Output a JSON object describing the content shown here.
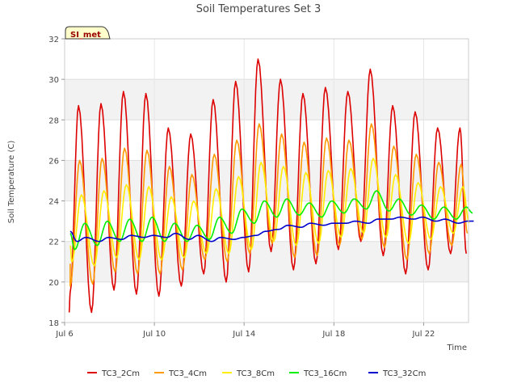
{
  "chart_data": {
    "type": "line",
    "title": "Soil Temperatures Set 3",
    "xlabel": "Time",
    "ylabel": "Soil Temperature (C)",
    "site_label": "SI_met",
    "xlim": [
      6.0,
      24.0
    ],
    "ylim": [
      18,
      32
    ],
    "x_ticks": [
      {
        "value": 6,
        "label": "Jul 6"
      },
      {
        "value": 10,
        "label": "Jul 10"
      },
      {
        "value": 14,
        "label": "Jul 14"
      },
      {
        "value": 18,
        "label": "Jul 18"
      },
      {
        "value": 22,
        "label": "Jul 22"
      }
    ],
    "y_ticks": [
      18,
      20,
      22,
      24,
      26,
      28,
      30,
      32
    ],
    "grid": true,
    "legend_position": "bottom",
    "series": [
      {
        "name": "TC3_2Cm",
        "color": "#dd0000",
        "min_phase": 0.2,
        "max_phase": 0.62,
        "daily": [
          [
            18.5,
            28.7
          ],
          [
            18.5,
            28.8
          ],
          [
            19.6,
            29.4
          ],
          [
            19.4,
            29.3
          ],
          [
            19.3,
            27.6
          ],
          [
            19.8,
            27.3
          ],
          [
            20.4,
            29.0
          ],
          [
            20.0,
            29.9
          ],
          [
            20.5,
            31.0
          ],
          [
            21.5,
            30.0
          ],
          [
            20.6,
            29.3
          ],
          [
            20.9,
            29.6
          ],
          [
            21.6,
            29.4
          ],
          [
            22.0,
            30.5
          ],
          [
            21.3,
            28.7
          ],
          [
            20.4,
            28.4
          ],
          [
            20.6,
            27.6
          ],
          [
            21.4,
            27.6
          ]
        ],
        "start": 19.5,
        "end": 21.4
      },
      {
        "name": "TC3_4Cm",
        "color": "#ff9900",
        "min_phase": 0.25,
        "max_phase": 0.67,
        "daily": [
          [
            19.8,
            26.0
          ],
          [
            19.9,
            26.1
          ],
          [
            20.5,
            26.6
          ],
          [
            20.4,
            26.5
          ],
          [
            20.4,
            25.7
          ],
          [
            20.6,
            25.3
          ],
          [
            21.1,
            26.3
          ],
          [
            21.0,
            27.0
          ],
          [
            21.4,
            27.8
          ],
          [
            21.9,
            27.3
          ],
          [
            21.2,
            26.9
          ],
          [
            21.3,
            27.1
          ],
          [
            21.8,
            27.0
          ],
          [
            22.1,
            27.8
          ],
          [
            21.7,
            26.7
          ],
          [
            21.1,
            26.3
          ],
          [
            21.4,
            25.9
          ],
          [
            21.8,
            25.8
          ]
        ],
        "start": 20.9,
        "end": 22.4
      },
      {
        "name": "TC3_8Cm",
        "color": "#ffee00",
        "min_phase": 0.32,
        "max_phase": 0.75,
        "daily": [
          [
            21.0,
            24.3
          ],
          [
            20.8,
            24.5
          ],
          [
            21.2,
            24.8
          ],
          [
            21.1,
            24.7
          ],
          [
            21.1,
            24.2
          ],
          [
            21.2,
            24.0
          ],
          [
            21.4,
            24.6
          ],
          [
            21.4,
            25.2
          ],
          [
            21.6,
            25.9
          ],
          [
            22.0,
            25.7
          ],
          [
            21.8,
            25.4
          ],
          [
            21.9,
            25.5
          ],
          [
            22.2,
            25.6
          ],
          [
            22.4,
            26.1
          ],
          [
            22.2,
            25.3
          ],
          [
            21.9,
            24.9
          ],
          [
            22.1,
            24.7
          ],
          [
            22.4,
            24.7
          ]
        ],
        "start": 21.8,
        "end": 22.9
      },
      {
        "name": "TC3_16Cm",
        "color": "#00ee00",
        "min_phase": 0.45,
        "max_phase": 0.9,
        "daily": [
          [
            21.6,
            22.9
          ],
          [
            21.8,
            23.0
          ],
          [
            22.0,
            23.1
          ],
          [
            22.0,
            23.2
          ],
          [
            22.0,
            22.9
          ],
          [
            22.0,
            22.8
          ],
          [
            22.1,
            23.2
          ],
          [
            22.4,
            23.6
          ],
          [
            22.9,
            24.0
          ],
          [
            23.2,
            24.1
          ],
          [
            23.3,
            23.9
          ],
          [
            23.2,
            24.0
          ],
          [
            23.4,
            24.1
          ],
          [
            23.6,
            24.5
          ],
          [
            23.5,
            24.1
          ],
          [
            23.3,
            23.8
          ],
          [
            23.1,
            23.7
          ],
          [
            23.1,
            23.7
          ]
        ],
        "start": 22.4,
        "end": 23.4
      },
      {
        "name": "TC3_32Cm",
        "color": "#0000cc",
        "min_phase": 0.55,
        "max_phase": 0.95,
        "daily": [
          [
            22.0,
            22.2
          ],
          [
            22.0,
            22.2
          ],
          [
            22.1,
            22.3
          ],
          [
            22.2,
            22.3
          ],
          [
            22.2,
            22.4
          ],
          [
            22.1,
            22.3
          ],
          [
            22.0,
            22.2
          ],
          [
            22.1,
            22.2
          ],
          [
            22.3,
            22.5
          ],
          [
            22.6,
            22.8
          ],
          [
            22.7,
            22.9
          ],
          [
            22.8,
            22.9
          ],
          [
            22.9,
            23.0
          ],
          [
            22.9,
            23.1
          ],
          [
            23.1,
            23.2
          ],
          [
            23.1,
            23.2
          ],
          [
            23.0,
            23.1
          ],
          [
            22.9,
            23.0
          ]
        ],
        "start": 22.5,
        "end": 23.0
      }
    ]
  }
}
